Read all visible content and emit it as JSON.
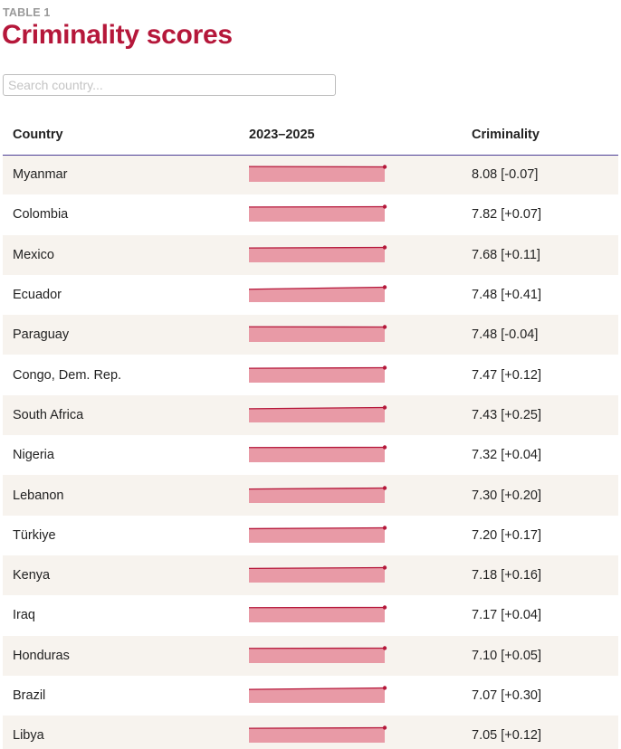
{
  "header": {
    "kicker": "TABLE 1",
    "title": "Criminality scores"
  },
  "search": {
    "placeholder": "Search country..."
  },
  "table": {
    "columns": [
      "Country",
      "2023–2025",
      "Criminality"
    ],
    "rows": [
      {
        "country": "Myanmar",
        "score": 8.08,
        "change": -0.07,
        "display": "8.08 [-0.07]"
      },
      {
        "country": "Colombia",
        "score": 7.82,
        "change": 0.07,
        "display": "7.82 [+0.07]"
      },
      {
        "country": "Mexico",
        "score": 7.68,
        "change": 0.11,
        "display": "7.68 [+0.11]"
      },
      {
        "country": "Ecuador",
        "score": 7.48,
        "change": 0.41,
        "display": "7.48 [+0.41]"
      },
      {
        "country": "Paraguay",
        "score": 7.48,
        "change": -0.04,
        "display": "7.48 [-0.04]"
      },
      {
        "country": "Congo, Dem. Rep.",
        "score": 7.47,
        "change": 0.12,
        "display": "7.47 [+0.12]"
      },
      {
        "country": "South Africa",
        "score": 7.43,
        "change": 0.25,
        "display": "7.43 [+0.25]"
      },
      {
        "country": "Nigeria",
        "score": 7.32,
        "change": 0.04,
        "display": "7.32 [+0.04]"
      },
      {
        "country": "Lebanon",
        "score": 7.3,
        "change": 0.2,
        "display": "7.30 [+0.20]"
      },
      {
        "country": "Türkiye",
        "score": 7.2,
        "change": 0.17,
        "display": "7.20 [+0.17]"
      },
      {
        "country": "Kenya",
        "score": 7.18,
        "change": 0.16,
        "display": "7.18 [+0.16]"
      },
      {
        "country": "Iraq",
        "score": 7.17,
        "change": 0.04,
        "display": "7.17 [+0.04]"
      },
      {
        "country": "Honduras",
        "score": 7.1,
        "change": 0.05,
        "display": "7.10 [+0.05]"
      },
      {
        "country": "Brazil",
        "score": 7.07,
        "change": 0.3,
        "display": "7.07 [+0.30]"
      },
      {
        "country": "Libya",
        "score": 7.05,
        "change": 0.12,
        "display": "7.05 [+0.12]"
      }
    ]
  },
  "colors": {
    "title": "#b5173a",
    "spark_fill": "#e89aa6",
    "spark_line": "#b5173a",
    "row_alt": "#f7f3ee",
    "header_rule": "#4d3f96"
  }
}
